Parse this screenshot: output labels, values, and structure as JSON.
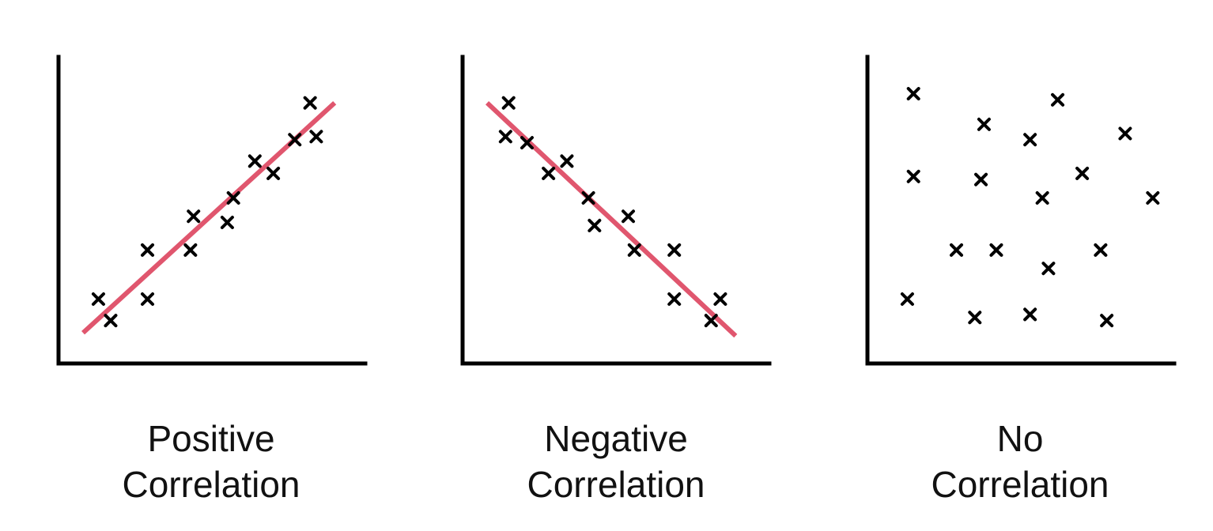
{
  "chart_data": [
    {
      "type": "scatter",
      "title_line1": "Positive",
      "title_line2": "Correlation",
      "xlabel": "",
      "ylabel": "",
      "xlim": [
        0,
        100
      ],
      "ylim": [
        0,
        100
      ],
      "axis_color": "#000000",
      "marker": "x",
      "marker_color": "#000000",
      "trendline": {
        "color": "#e0566e",
        "from": [
          8,
          10
        ],
        "to": [
          90,
          85
        ]
      },
      "points": [
        {
          "x": 13,
          "y": 21
        },
        {
          "x": 17,
          "y": 14
        },
        {
          "x": 29,
          "y": 37
        },
        {
          "x": 29,
          "y": 21
        },
        {
          "x": 43,
          "y": 37
        },
        {
          "x": 44,
          "y": 48
        },
        {
          "x": 55,
          "y": 46
        },
        {
          "x": 57,
          "y": 54
        },
        {
          "x": 64,
          "y": 66
        },
        {
          "x": 70,
          "y": 62
        },
        {
          "x": 77,
          "y": 73
        },
        {
          "x": 82,
          "y": 85
        },
        {
          "x": 84,
          "y": 74
        }
      ]
    },
    {
      "type": "scatter",
      "title_line1": "Negative",
      "title_line2": "Correlation",
      "xlabel": "",
      "ylabel": "",
      "xlim": [
        0,
        100
      ],
      "ylim": [
        0,
        100
      ],
      "axis_color": "#000000",
      "marker": "x",
      "marker_color": "#000000",
      "trendline": {
        "color": "#e0566e",
        "from": [
          8,
          85
        ],
        "to": [
          89,
          9
        ]
      },
      "points": [
        {
          "x": 15,
          "y": 85
        },
        {
          "x": 14,
          "y": 74
        },
        {
          "x": 21,
          "y": 72
        },
        {
          "x": 28,
          "y": 62
        },
        {
          "x": 34,
          "y": 66
        },
        {
          "x": 41,
          "y": 54
        },
        {
          "x": 43,
          "y": 45
        },
        {
          "x": 54,
          "y": 48
        },
        {
          "x": 56,
          "y": 37
        },
        {
          "x": 69,
          "y": 37
        },
        {
          "x": 69,
          "y": 21
        },
        {
          "x": 81,
          "y": 14
        },
        {
          "x": 84,
          "y": 21
        }
      ]
    },
    {
      "type": "scatter",
      "title_line1": "No",
      "title_line2": "Correlation",
      "xlabel": "",
      "ylabel": "",
      "xlim": [
        0,
        100
      ],
      "ylim": [
        0,
        100
      ],
      "axis_color": "#000000",
      "marker": "x",
      "marker_color": "#000000",
      "trendline": null,
      "points": [
        {
          "x": 15,
          "y": 88
        },
        {
          "x": 15,
          "y": 61
        },
        {
          "x": 13,
          "y": 21
        },
        {
          "x": 29,
          "y": 37
        },
        {
          "x": 35,
          "y": 15
        },
        {
          "x": 37,
          "y": 60
        },
        {
          "x": 38,
          "y": 78
        },
        {
          "x": 42,
          "y": 37
        },
        {
          "x": 53,
          "y": 73
        },
        {
          "x": 53,
          "y": 16
        },
        {
          "x": 57,
          "y": 54
        },
        {
          "x": 59,
          "y": 31
        },
        {
          "x": 62,
          "y": 86
        },
        {
          "x": 70,
          "y": 62
        },
        {
          "x": 76,
          "y": 37
        },
        {
          "x": 78,
          "y": 14
        },
        {
          "x": 84,
          "y": 75
        },
        {
          "x": 93,
          "y": 54
        }
      ]
    }
  ]
}
